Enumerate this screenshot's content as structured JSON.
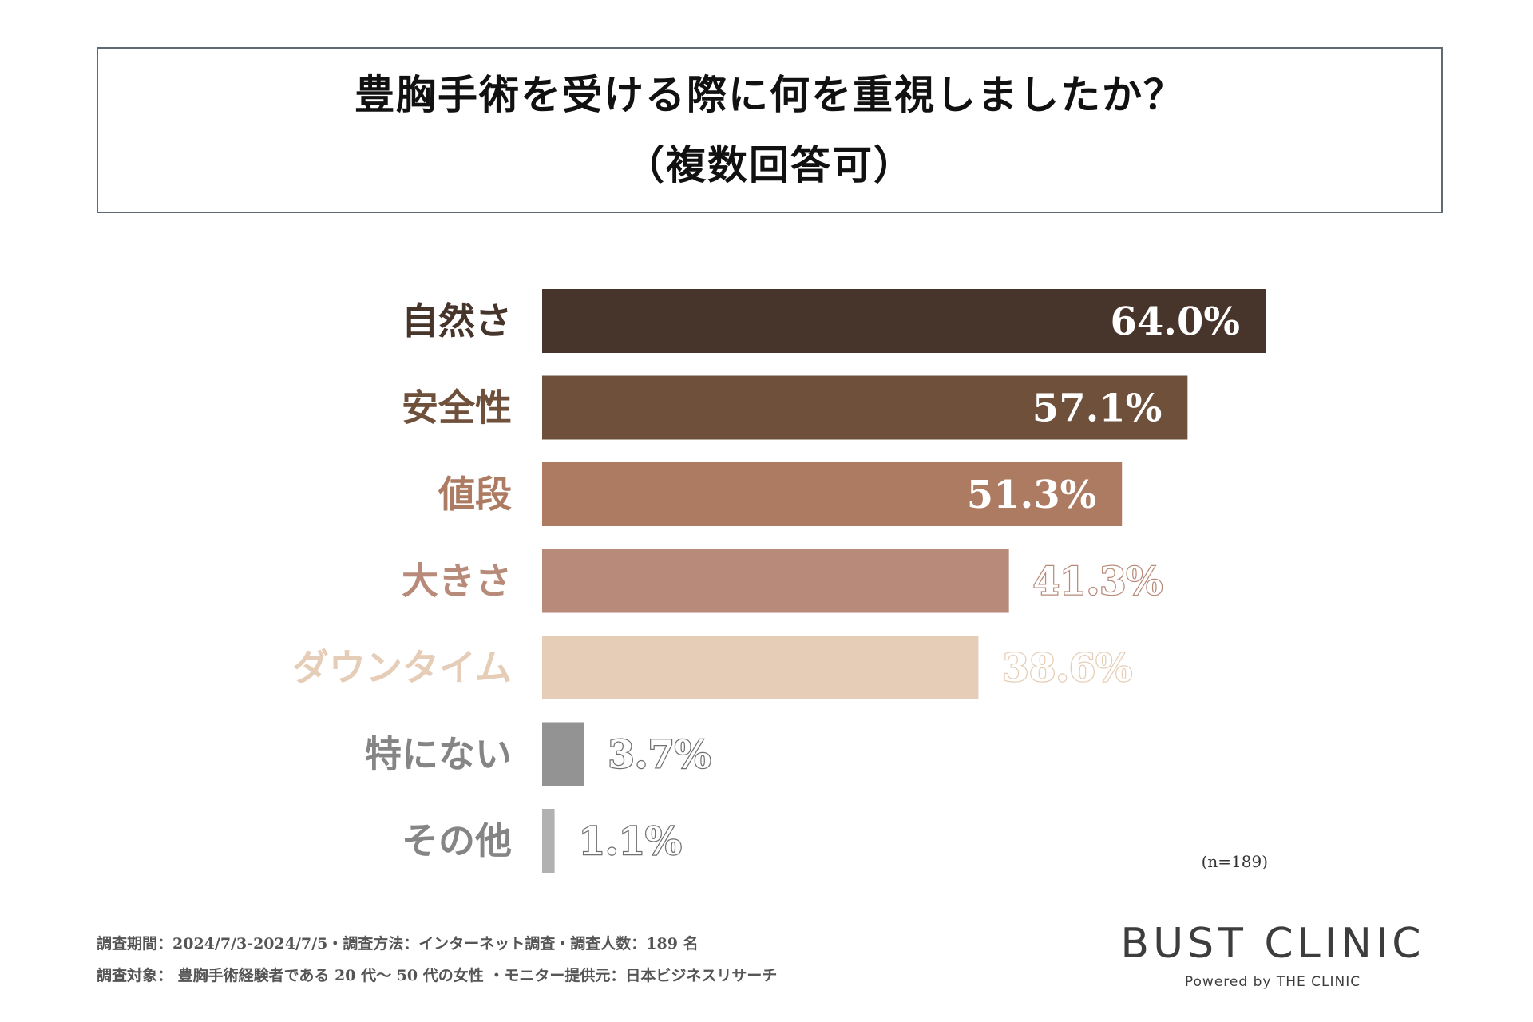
{
  "title": {
    "line1": "豊胸手術を受ける際に何を重視しましたか？",
    "line2": "（複数回答可）"
  },
  "chart_data": {
    "type": "bar",
    "orientation": "horizontal",
    "title": "豊胸手術を受ける際に何を重視しましたか？（複数回答可）",
    "categories": [
      "自然さ",
      "安全性",
      "値段",
      "大きさ",
      "ダウンタイム",
      "特にない",
      "その他"
    ],
    "values": [
      64.0,
      57.1,
      51.3,
      41.3,
      38.6,
      3.7,
      1.1
    ],
    "value_labels": [
      "64.0%",
      "57.1%",
      "51.3%",
      "41.3%",
      "38.6%",
      "3.7%",
      "1.1%"
    ],
    "colors": [
      "#47342a",
      "#6e503b",
      "#ad7a62",
      "#b88a7a",
      "#e5cdb7",
      "#939393",
      "#b1b1b1"
    ],
    "xlim": [
      0,
      64
    ],
    "xlabel": "",
    "ylabel": "",
    "grid": false,
    "legend": "none"
  },
  "sample_note": "(n=189)",
  "footer": {
    "line1": "調査期間：2024/7/3-2024/7/5・調査方法：インターネット調査・調査人数：189 名",
    "line2": "調査対象： 豊胸手術経験者である 20 代～ 50 代の女性 ・モニター提供元：日本ビジネスリサーチ"
  },
  "brand": {
    "name": "BUST CLINIC",
    "tagline": "Powered by THE CLINIC"
  }
}
